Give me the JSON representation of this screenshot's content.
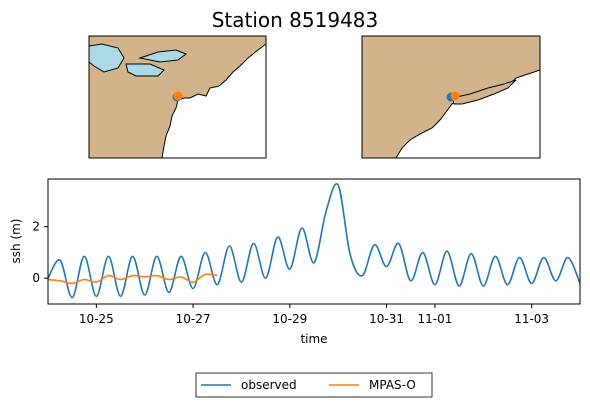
{
  "title": "Station 8519483",
  "colors": {
    "land": "#d2b48c",
    "water": "#add8e6",
    "observed": "#1f77b4",
    "model": "#ff7f0e"
  },
  "chart_data": {
    "type": "line",
    "xlabel": "time",
    "ylabel": "ssh (m)",
    "xlim": [
      "2012-10-24",
      "2012-11-04"
    ],
    "ylim": [
      -1.0,
      3.85
    ],
    "xticks": [
      {
        "date": "2012-10-25",
        "label": "10-25"
      },
      {
        "date": "2012-10-27",
        "label": "10-27"
      },
      {
        "date": "2012-10-29",
        "label": "10-29"
      },
      {
        "date": "2012-10-31",
        "label": "10-31"
      },
      {
        "date": "2012-11-01",
        "label": "11-01"
      },
      {
        "date": "2012-11-03",
        "label": "11-03"
      }
    ],
    "yticks": [
      {
        "value": 0,
        "label": "0"
      },
      {
        "value": 2,
        "label": "2"
      }
    ],
    "legend": {
      "placement": "bottom-center"
    },
    "series": [
      {
        "name": "observed",
        "x": [
          "2012-10-24T00:00",
          "2012-10-24T06:00",
          "2012-10-24T12:00",
          "2012-10-24T18:00",
          "2012-10-25T00:00",
          "2012-10-25T06:00",
          "2012-10-25T12:00",
          "2012-10-25T18:00",
          "2012-10-26T00:00",
          "2012-10-26T06:00",
          "2012-10-26T12:00",
          "2012-10-26T18:00",
          "2012-10-27T00:00",
          "2012-10-27T06:00",
          "2012-10-27T12:00",
          "2012-10-27T18:00",
          "2012-10-28T00:00",
          "2012-10-28T06:00",
          "2012-10-28T12:00",
          "2012-10-28T18:00",
          "2012-10-29T00:00",
          "2012-10-29T06:00",
          "2012-10-29T12:00",
          "2012-10-29T18:00",
          "2012-10-30T00:00",
          "2012-10-30T06:00",
          "2012-10-30T12:00",
          "2012-10-30T18:00",
          "2012-10-31T00:00",
          "2012-10-31T06:00",
          "2012-10-31T12:00",
          "2012-10-31T18:00",
          "2012-11-01T00:00",
          "2012-11-01T06:00",
          "2012-11-01T12:00",
          "2012-11-01T18:00",
          "2012-11-02T00:00",
          "2012-11-02T06:00",
          "2012-11-02T12:00",
          "2012-11-02T18:00",
          "2012-11-03T00:00",
          "2012-11-03T06:00",
          "2012-11-03T12:00",
          "2012-11-03T18:00",
          "2012-11-04T00:00"
        ],
        "y": [
          0.0,
          0.7,
          -0.75,
          0.85,
          -0.7,
          0.85,
          -0.7,
          0.85,
          -0.65,
          0.85,
          -0.55,
          0.85,
          -0.4,
          1.0,
          -0.25,
          1.25,
          -0.15,
          1.35,
          0.0,
          1.6,
          0.35,
          1.95,
          0.6,
          2.6,
          3.6,
          0.9,
          0.1,
          1.3,
          0.45,
          1.35,
          -0.1,
          1.0,
          -0.25,
          1.05,
          -0.3,
          0.95,
          -0.3,
          0.85,
          -0.25,
          0.8,
          -0.2,
          0.8,
          -0.1,
          0.8,
          -0.2
        ]
      },
      {
        "name": "MPAS-O",
        "x": [
          "2012-10-24T00:00",
          "2012-10-24T06:00",
          "2012-10-24T12:00",
          "2012-10-24T18:00",
          "2012-10-25T00:00",
          "2012-10-25T06:00",
          "2012-10-25T12:00",
          "2012-10-25T18:00",
          "2012-10-26T00:00",
          "2012-10-26T06:00",
          "2012-10-26T12:00",
          "2012-10-26T18:00",
          "2012-10-27T00:00",
          "2012-10-27T06:00",
          "2012-10-27T12:00"
        ],
        "y": [
          -0.05,
          -0.1,
          -0.2,
          -0.05,
          -0.15,
          0.1,
          -0.05,
          0.1,
          0.05,
          0.1,
          -0.05,
          0.05,
          -0.15,
          0.15,
          0.1
        ]
      }
    ]
  }
}
